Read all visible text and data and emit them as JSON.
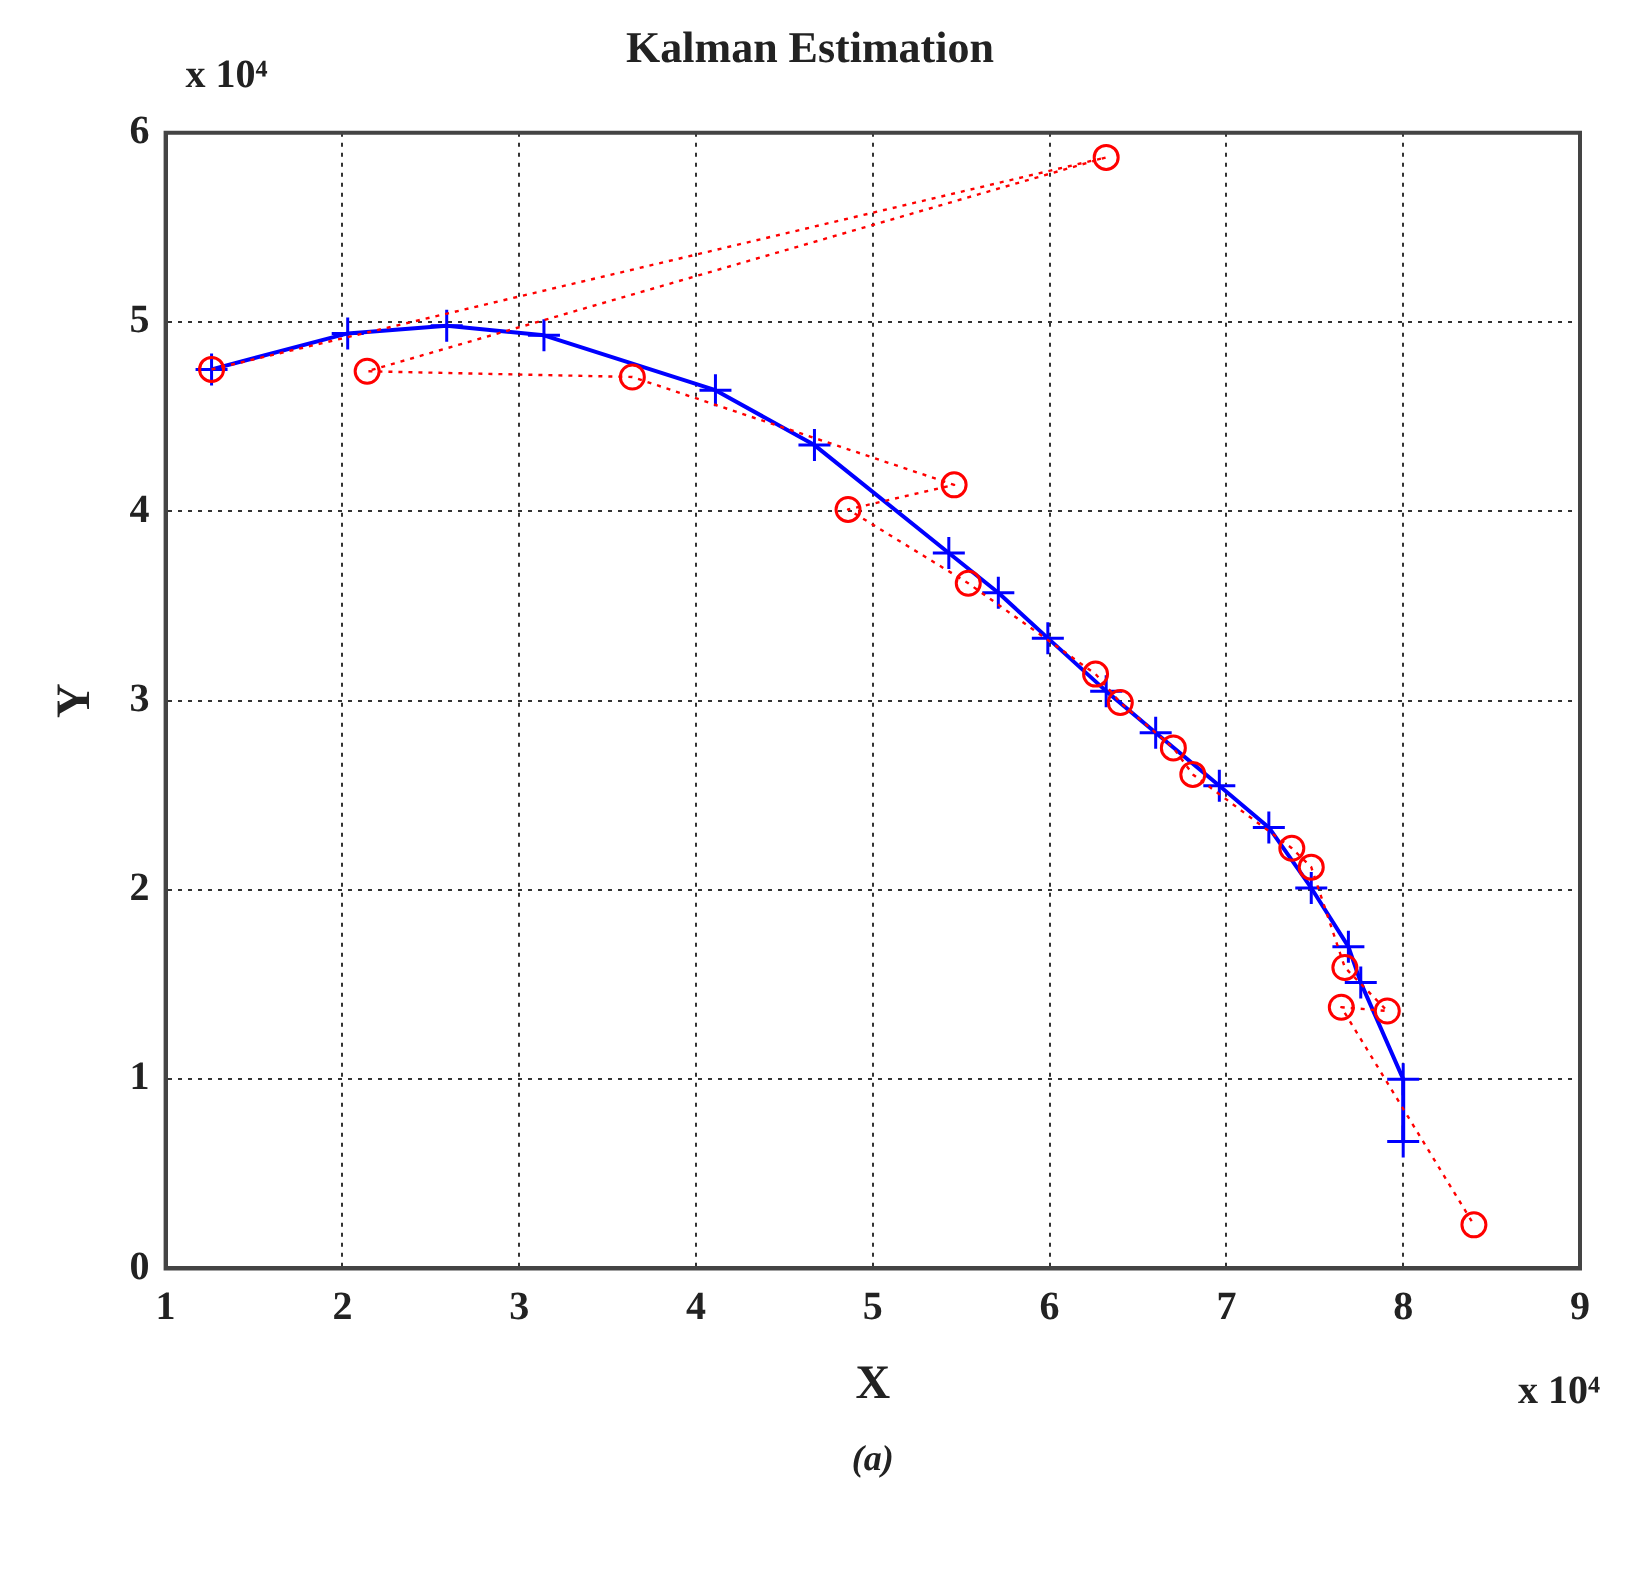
{
  "chart_data": {
    "type": "line",
    "title": "Kalman Estimation",
    "xlabel": "X",
    "ylabel": "Y",
    "annotations": [
      "x 10⁴",
      "x 10⁴",
      "(a)"
    ],
    "xlim": [
      1,
      9
    ],
    "xticks": [
      1,
      2,
      3,
      4,
      5,
      6,
      7,
      8,
      9
    ],
    "ylim": [
      0,
      6
    ],
    "yticks": [
      0,
      1,
      2,
      3,
      4,
      5,
      6
    ],
    "grid": true,
    "legend": false,
    "series": [
      {
        "color": "#ff0000",
        "marker": "circle",
        "line_style": "dotted",
        "x": [
          1.26,
          6.32,
          2.14,
          3.64,
          5.46,
          4.86,
          5.54,
          6.26,
          6.4,
          6.7,
          6.81,
          7.37,
          7.48,
          7.67,
          7.91,
          7.65,
          8.4
        ],
        "values": [
          4.75,
          5.87,
          4.74,
          4.71,
          4.14,
          4.01,
          3.62,
          3.14,
          2.99,
          2.75,
          2.61,
          2.22,
          2.12,
          1.59,
          1.36,
          1.38,
          0.23
        ]
      },
      {
        "color": "#0000ff",
        "marker": "cross",
        "line_style": "solid",
        "x": [
          1.26,
          2.03,
          2.59,
          3.14,
          4.11,
          4.67,
          5.43,
          5.71,
          5.99,
          6.32,
          6.6,
          6.96,
          7.24,
          7.48,
          7.69,
          7.76,
          8.0,
          8.0
        ],
        "values": [
          4.75,
          4.94,
          4.98,
          4.93,
          4.64,
          4.35,
          3.78,
          3.57,
          3.33,
          3.05,
          2.83,
          2.55,
          2.33,
          2.01,
          1.7,
          1.51,
          1.0,
          0.67
        ]
      }
    ]
  }
}
